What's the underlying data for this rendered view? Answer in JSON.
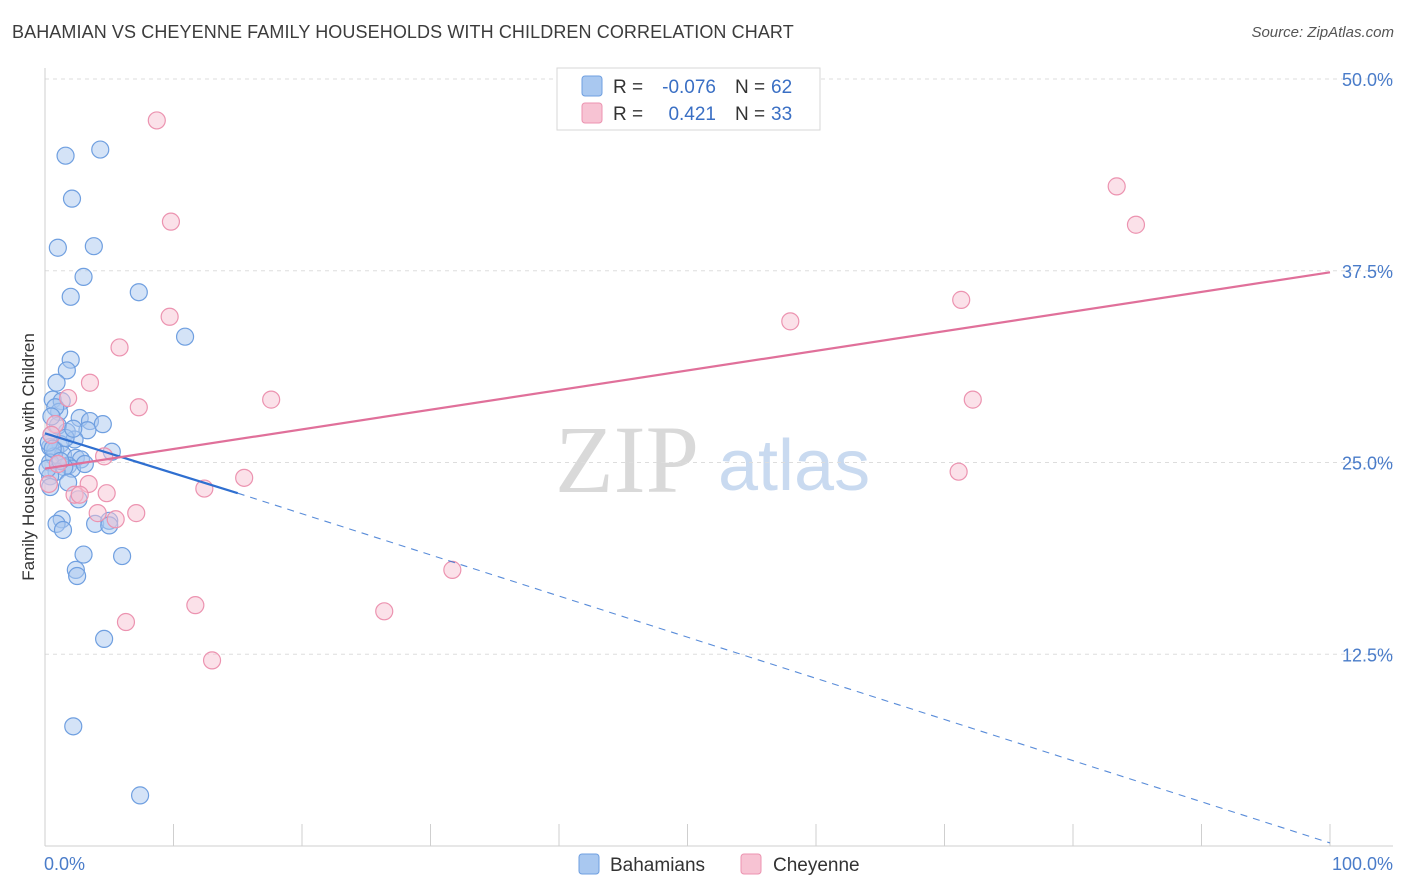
{
  "title": "BAHAMIAN VS CHEYENNE FAMILY HOUSEHOLDS WITH CHILDREN CORRELATION CHART",
  "source": "Source: ZipAtlas.com",
  "watermark": {
    "zip": "ZIP",
    "atlas": "atlas"
  },
  "colors": {
    "blue_fill": "#a9c8f0",
    "blue_stroke": "#6f9fe0",
    "blue_line": "#2f6fd0",
    "pink_fill": "#f7c3d3",
    "pink_stroke": "#ec93b0",
    "pink_line": "#e0709a",
    "grid": "#dddddd",
    "tick_text": "#4a7cc9"
  },
  "legend": {
    "rows": [
      {
        "r_label": "R =",
        "r_value": "-0.076",
        "n_label": "N =",
        "n_value": "62",
        "series": "Bahamians"
      },
      {
        "r_label": "R =",
        "r_value": "0.421",
        "n_label": "N =",
        "n_value": "33",
        "series": "Cheyenne"
      }
    ]
  },
  "chart_data": {
    "type": "scatter",
    "title": "BAHAMIAN VS CHEYENNE FAMILY HOUSEHOLDS WITH CHILDREN CORRELATION CHART",
    "xlabel": "",
    "ylabel": "Family Households with Children",
    "xlim": [
      0,
      100
    ],
    "ylim": [
      0,
      50
    ],
    "x_tick_labels": [
      "0.0%",
      "100.0%"
    ],
    "y_ticks": [
      12.5,
      25.0,
      37.5,
      50.0
    ],
    "y_tick_labels": [
      "12.5%",
      "25.0%",
      "37.5%",
      "50.0%"
    ],
    "grid": true,
    "legend_position": "bottom-center",
    "series": [
      {
        "name": "Bahamians",
        "color": "#a9c8f0",
        "points": [
          [
            1.6,
            45.0
          ],
          [
            4.3,
            45.4
          ],
          [
            2.1,
            42.2
          ],
          [
            1.0,
            39.0
          ],
          [
            3.8,
            39.1
          ],
          [
            3.0,
            37.1
          ],
          [
            2.0,
            35.8
          ],
          [
            7.3,
            36.1
          ],
          [
            10.9,
            33.2
          ],
          [
            2.0,
            31.7
          ],
          [
            1.7,
            31.0
          ],
          [
            0.9,
            30.2
          ],
          [
            0.6,
            29.1
          ],
          [
            1.3,
            29.0
          ],
          [
            1.1,
            28.3
          ],
          [
            0.8,
            28.6
          ],
          [
            2.7,
            27.9
          ],
          [
            3.5,
            27.7
          ],
          [
            4.5,
            27.5
          ],
          [
            3.3,
            27.1
          ],
          [
            1.7,
            27.0
          ],
          [
            0.5,
            26.8
          ],
          [
            2.3,
            26.5
          ],
          [
            1.2,
            26.2
          ],
          [
            0.4,
            26.0
          ],
          [
            0.8,
            25.8
          ],
          [
            5.2,
            25.7
          ],
          [
            1.4,
            25.5
          ],
          [
            0.7,
            25.4
          ],
          [
            2.4,
            25.3
          ],
          [
            2.8,
            25.2
          ],
          [
            0.4,
            25.0
          ],
          [
            1.8,
            24.8
          ],
          [
            2.1,
            24.6
          ],
          [
            1.5,
            24.7
          ],
          [
            0.9,
            24.4
          ],
          [
            0.4,
            24.1
          ],
          [
            1.8,
            23.7
          ],
          [
            0.4,
            23.4
          ],
          [
            2.6,
            22.6
          ],
          [
            1.3,
            21.3
          ],
          [
            0.9,
            21.0
          ],
          [
            3.9,
            21.0
          ],
          [
            5.0,
            21.2
          ],
          [
            5.0,
            20.9
          ],
          [
            1.4,
            20.6
          ],
          [
            3.0,
            19.0
          ],
          [
            6.0,
            18.9
          ],
          [
            2.4,
            18.0
          ],
          [
            2.5,
            17.6
          ],
          [
            4.6,
            13.5
          ],
          [
            2.2,
            7.8
          ],
          [
            7.4,
            3.3
          ],
          [
            0.3,
            26.3
          ],
          [
            0.6,
            25.9
          ],
          [
            1.0,
            27.4
          ],
          [
            3.1,
            24.9
          ],
          [
            1.6,
            26.6
          ],
          [
            0.2,
            24.6
          ],
          [
            2.2,
            27.2
          ],
          [
            0.5,
            28.0
          ],
          [
            1.2,
            25.1
          ]
        ]
      },
      {
        "name": "Cheyenne",
        "color": "#f7c3d3",
        "points": [
          [
            8.7,
            47.3
          ],
          [
            9.8,
            40.7
          ],
          [
            83.4,
            43.0
          ],
          [
            84.9,
            40.5
          ],
          [
            9.7,
            34.5
          ],
          [
            58.0,
            34.2
          ],
          [
            71.3,
            35.6
          ],
          [
            72.2,
            29.1
          ],
          [
            5.8,
            32.5
          ],
          [
            3.5,
            30.2
          ],
          [
            1.8,
            29.2
          ],
          [
            7.3,
            28.6
          ],
          [
            17.6,
            29.1
          ],
          [
            0.8,
            27.5
          ],
          [
            0.5,
            26.8
          ],
          [
            4.6,
            25.4
          ],
          [
            3.4,
            23.6
          ],
          [
            0.3,
            23.6
          ],
          [
            15.5,
            24.0
          ],
          [
            12.4,
            23.3
          ],
          [
            2.3,
            22.9
          ],
          [
            4.8,
            23.0
          ],
          [
            2.7,
            22.9
          ],
          [
            7.1,
            21.7
          ],
          [
            4.1,
            21.7
          ],
          [
            5.5,
            21.3
          ],
          [
            71.1,
            24.4
          ],
          [
            31.7,
            18.0
          ],
          [
            26.4,
            15.3
          ],
          [
            11.7,
            15.7
          ],
          [
            6.3,
            14.6
          ],
          [
            13.0,
            12.1
          ],
          [
            1.0,
            24.9
          ]
        ]
      }
    ],
    "trend_lines": [
      {
        "series": "Bahamians",
        "solid_from": [
          0,
          26.9
        ],
        "solid_to": [
          15,
          23.0
        ],
        "dashed_to": [
          100,
          0.2
        ]
      },
      {
        "series": "Cheyenne",
        "from": [
          0,
          24.6
        ],
        "to": [
          100,
          37.4
        ]
      }
    ]
  }
}
